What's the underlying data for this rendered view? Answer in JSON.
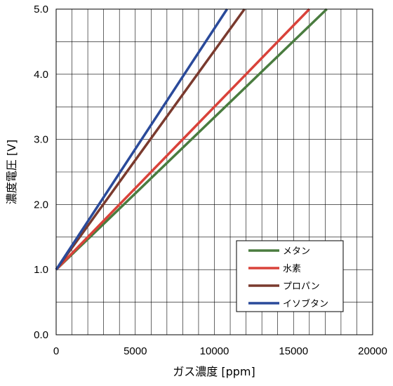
{
  "chart_data": {
    "type": "line",
    "title": "",
    "xlabel": "ガス濃度 [ppm]",
    "ylabel": "濃度電圧 [V]",
    "xlim": [
      0,
      20000
    ],
    "ylim": [
      0.0,
      5.0
    ],
    "x_ticks": [
      "0",
      "5000",
      "10000",
      "15000",
      "20000"
    ],
    "y_ticks": [
      "0.0",
      "1.0",
      "2.0",
      "3.0",
      "4.0",
      "5.0"
    ],
    "grid": true,
    "legend_position": "bottom-right",
    "series": [
      {
        "name": "メタン",
        "color": "#4a7c3f",
        "points": [
          [
            0,
            1.0
          ],
          [
            17100,
            5.0
          ]
        ]
      },
      {
        "name": "水素",
        "color": "#d9423a",
        "points": [
          [
            0,
            1.0
          ],
          [
            16000,
            5.0
          ]
        ]
      },
      {
        "name": "プロパン",
        "color": "#7a3a2e",
        "points": [
          [
            0,
            1.0
          ],
          [
            11900,
            5.0
          ]
        ]
      },
      {
        "name": "イソブタン",
        "color": "#2a4a9a",
        "points": [
          [
            0,
            1.0
          ],
          [
            10800,
            5.0
          ]
        ]
      }
    ]
  }
}
